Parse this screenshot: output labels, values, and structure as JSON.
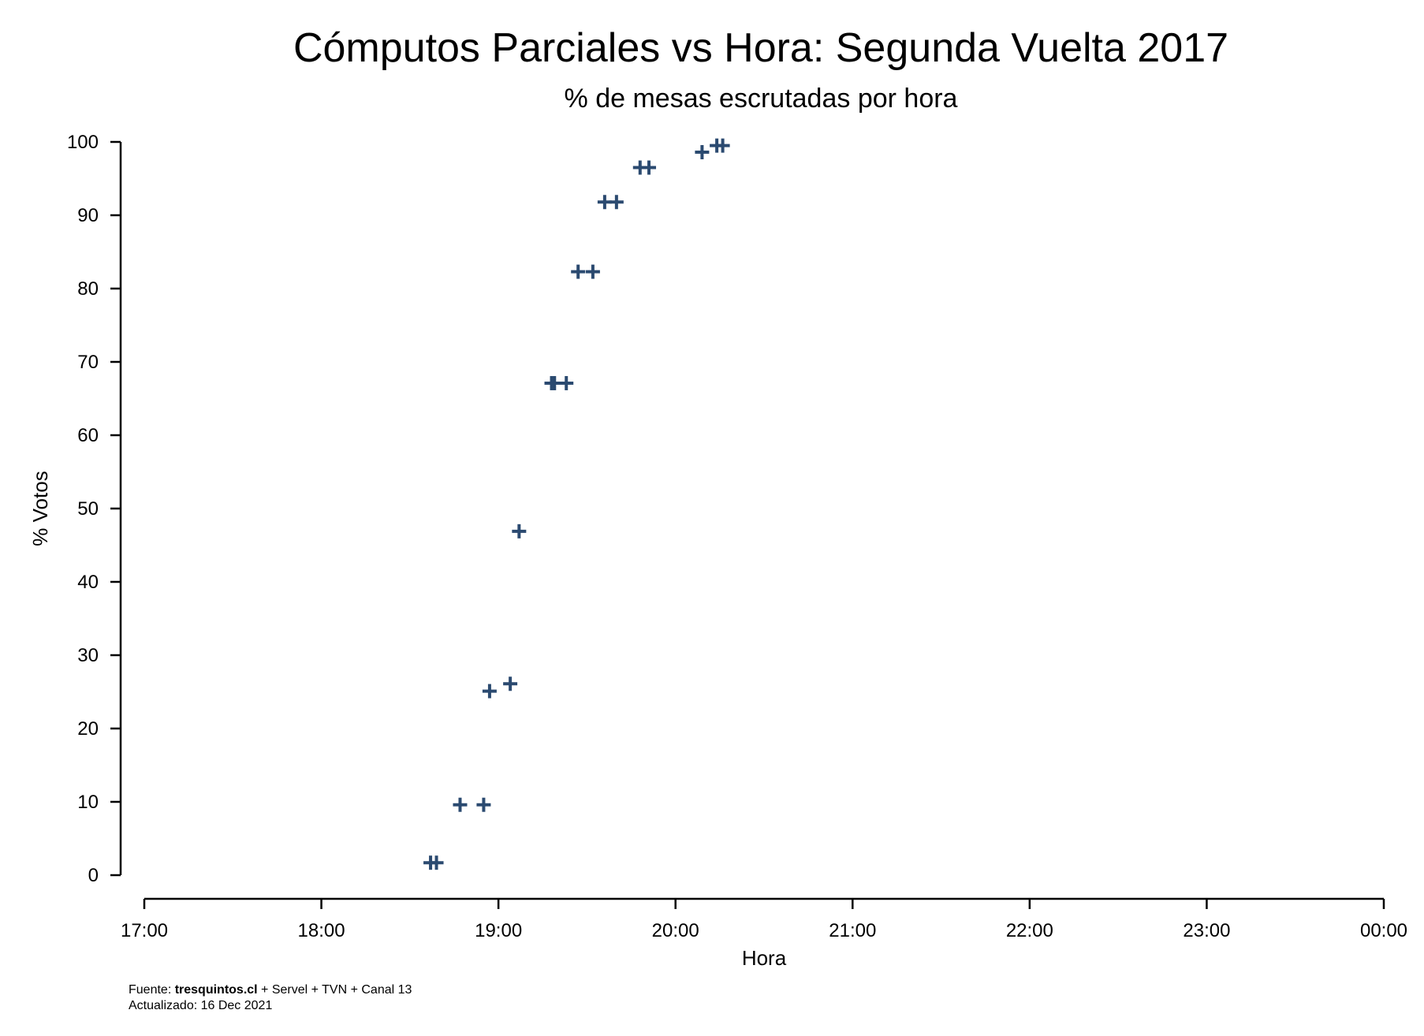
{
  "chart_data": {
    "type": "scatter",
    "title": "Cómputos Parciales vs Hora: Segunda Vuelta 2017",
    "subtitle": "% de mesas escrutadas por hora",
    "xlabel": "Hora",
    "ylabel": "% Votos",
    "x_ticks": [
      "17:00",
      "18:00",
      "19:00",
      "20:00",
      "21:00",
      "22:00",
      "23:00",
      "00:00"
    ],
    "xlim": [
      "17:00",
      "00:00"
    ],
    "ylim": [
      0,
      100
    ],
    "y_ticks": [
      0,
      10,
      20,
      30,
      40,
      50,
      60,
      70,
      80,
      90,
      100
    ],
    "grid": false,
    "marker": "plus",
    "marker_color": "#2b4a70",
    "points": [
      {
        "x": "18:37",
        "y": 1.7
      },
      {
        "x": "18:39",
        "y": 1.7
      },
      {
        "x": "18:47",
        "y": 9.6
      },
      {
        "x": "18:55",
        "y": 9.6
      },
      {
        "x": "18:57",
        "y": 25.1
      },
      {
        "x": "19:04",
        "y": 26.1
      },
      {
        "x": "19:07",
        "y": 46.9
      },
      {
        "x": "19:18",
        "y": 67.1
      },
      {
        "x": "19:19",
        "y": 67.1
      },
      {
        "x": "19:23",
        "y": 67.1
      },
      {
        "x": "19:27",
        "y": 82.3
      },
      {
        "x": "19:32",
        "y": 82.3
      },
      {
        "x": "19:36",
        "y": 91.8
      },
      {
        "x": "19:40",
        "y": 91.8
      },
      {
        "x": "19:48",
        "y": 96.5
      },
      {
        "x": "19:51",
        "y": 96.5
      },
      {
        "x": "20:09",
        "y": 98.6
      },
      {
        "x": "20:14",
        "y": 99.5
      },
      {
        "x": "20:16",
        "y": 99.5
      }
    ]
  },
  "footer": {
    "source_prefix": "Fuente: ",
    "source_bold": "tresquintos.cl",
    "source_rest": " + Servel + TVN + Canal 13",
    "updated": "Actualizado: 16 Dec 2021"
  }
}
